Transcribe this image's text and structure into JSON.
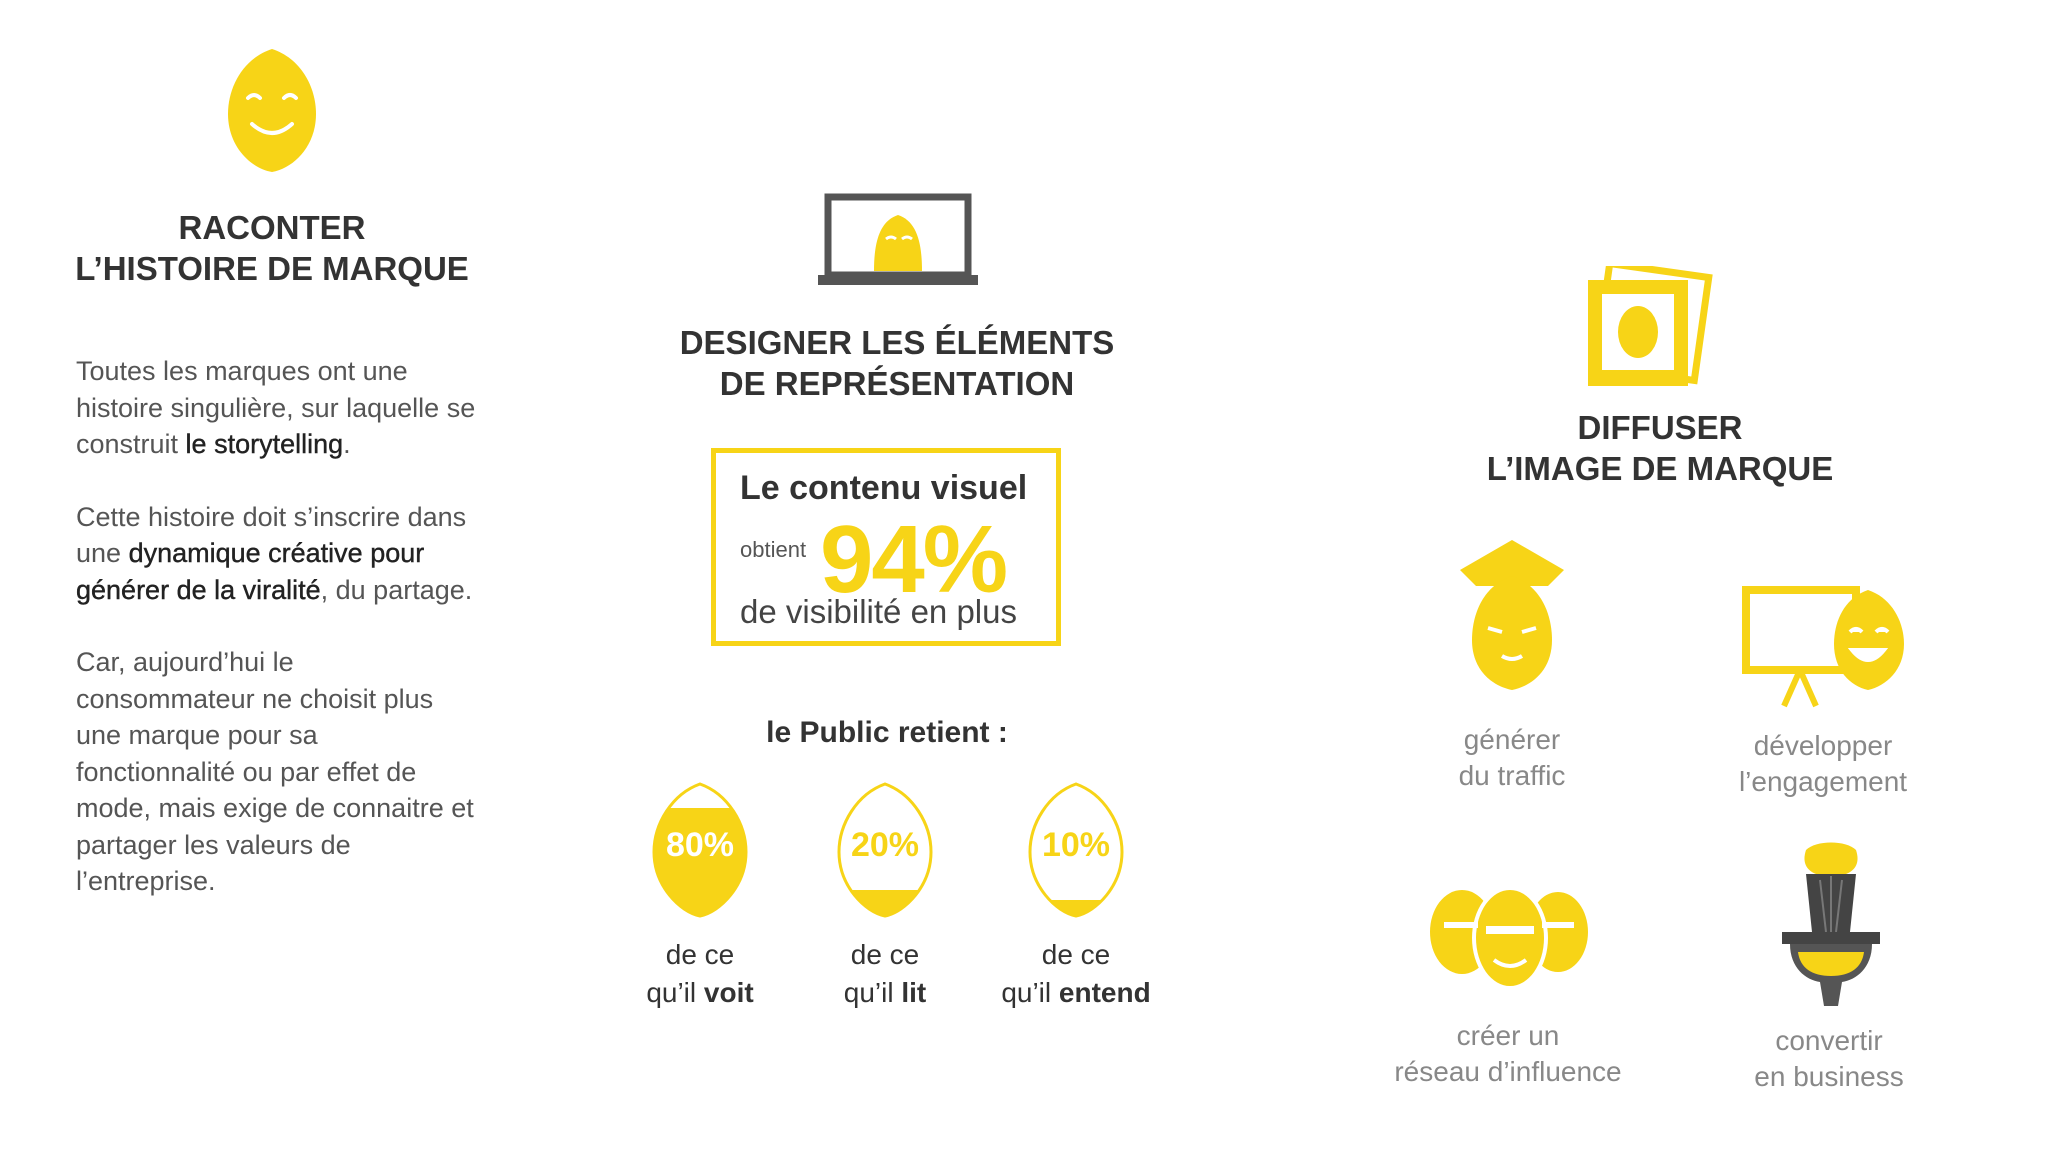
{
  "story": {
    "title": [
      "RACONTER",
      "L’HISTOIRE DE MARQUE"
    ],
    "paragraphs": [
      [
        {
          "text": "Toutes les marques ont une histoire singulière, sur laquelle se construit "
        },
        {
          "text": "le storytelling"
        },
        {
          "text": "."
        }
      ],
      [
        {
          "text": "Cette histoire doit s’inscrire dans une "
        },
        {
          "text": "dynamique créative pour générer de la viralité"
        },
        {
          "text": ", du partage."
        }
      ],
      [
        {
          "text": "Car, aujourd’hui le consommateur ne choisit plus une marque pour sa fonctionnalité ou par effet de mode, mais exige de connaitre et partager les valeurs de l’entreprise."
        }
      ]
    ]
  },
  "design": {
    "title": [
      "DESIGNER LES ÉLÉMENTS",
      "DE REPRÉSENTATION"
    ],
    "stat": {
      "line1": "Le contenu visuel",
      "prefix": "obtient",
      "figure": "94%",
      "line2": "de visibilité en plus"
    },
    "retention": {
      "heading": "le Public retient :",
      "items": [
        {
          "percent": "80%",
          "line1": "de ce",
          "prefix": "qu’il ",
          "keyword": "voit"
        },
        {
          "percent": "20%",
          "line1": "de ce",
          "prefix": "qu’il ",
          "keyword": "lit"
        },
        {
          "percent": "10%",
          "line1": "de ce",
          "prefix": "qu’il ",
          "keyword": "entend"
        }
      ]
    }
  },
  "diffuse": {
    "title": [
      "DIFFUSER",
      "L’IMAGE DE MARQUE"
    ],
    "actions": [
      [
        "générer",
        "du traffic"
      ],
      [
        "développer",
        "l’engagement"
      ],
      [
        "créer un",
        "réseau d’influence"
      ],
      [
        "convertir",
        "en business"
      ]
    ]
  }
}
